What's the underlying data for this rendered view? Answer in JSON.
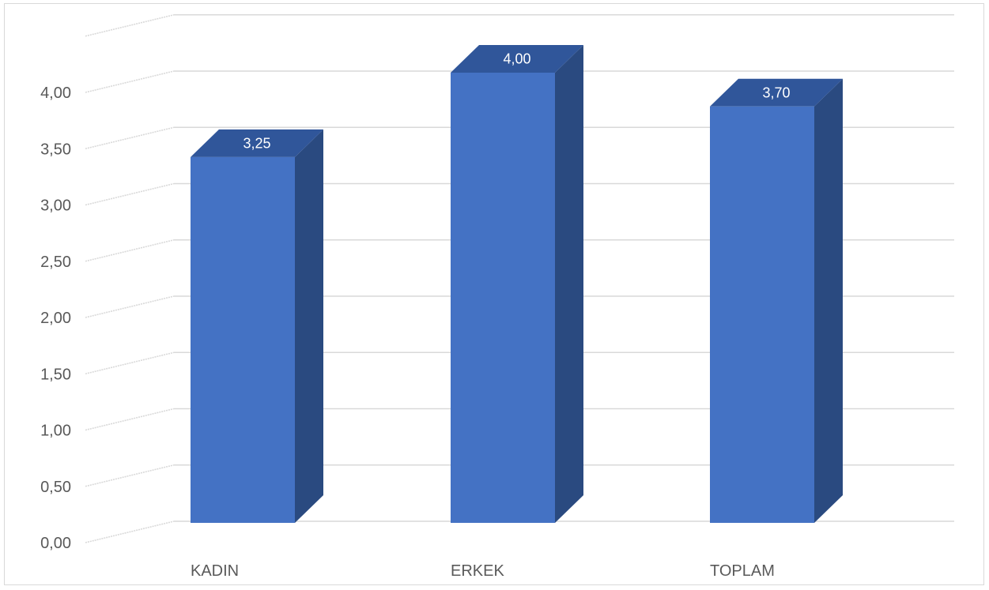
{
  "chart_data": {
    "type": "bar",
    "style": "3d-column",
    "categories": [
      "KADIN",
      "ERKEK",
      "TOPLAM"
    ],
    "values": [
      3.25,
      4.0,
      3.7
    ],
    "data_labels": [
      "3,25",
      "4,00",
      "3,70"
    ],
    "ylim": [
      0,
      4.0
    ],
    "y_ticks": [
      "0,00",
      "0,50",
      "1,00",
      "1,50",
      "2,00",
      "2,50",
      "3,00",
      "3,50",
      "4,00"
    ],
    "grid": true,
    "legend": "none",
    "colors": {
      "bar_front": "#4472c4",
      "bar_side": "#2a4a80",
      "bar_top": "#30569a",
      "grid": "#d9d9d9",
      "axis_text": "#595959"
    }
  }
}
